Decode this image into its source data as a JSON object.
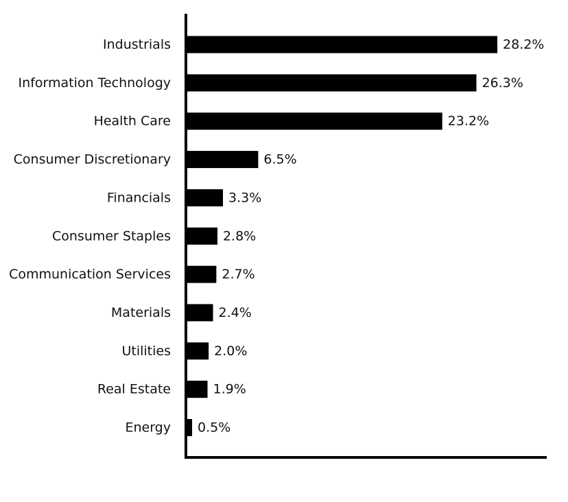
{
  "chart_data": {
    "type": "bar",
    "orientation": "horizontal",
    "categories": [
      "Industrials",
      "Information Technology",
      "Health Care",
      "Consumer Discretionary",
      "Financials",
      "Consumer Staples",
      "Communication Services",
      "Materials",
      "Utilities",
      "Real Estate",
      "Energy"
    ],
    "values": [
      28.2,
      26.3,
      23.2,
      6.5,
      3.3,
      2.8,
      2.7,
      2.4,
      2.0,
      1.9,
      0.5
    ],
    "value_labels": [
      "28.2%",
      "26.3%",
      "23.2%",
      "6.5%",
      "3.3%",
      "2.8%",
      "2.7%",
      "2.4%",
      "2.0%",
      "1.9%",
      "0.5%"
    ],
    "xlim": [
      0,
      32.7
    ],
    "grid": false,
    "bar_color": "#000000",
    "axis_color": "#000000"
  }
}
